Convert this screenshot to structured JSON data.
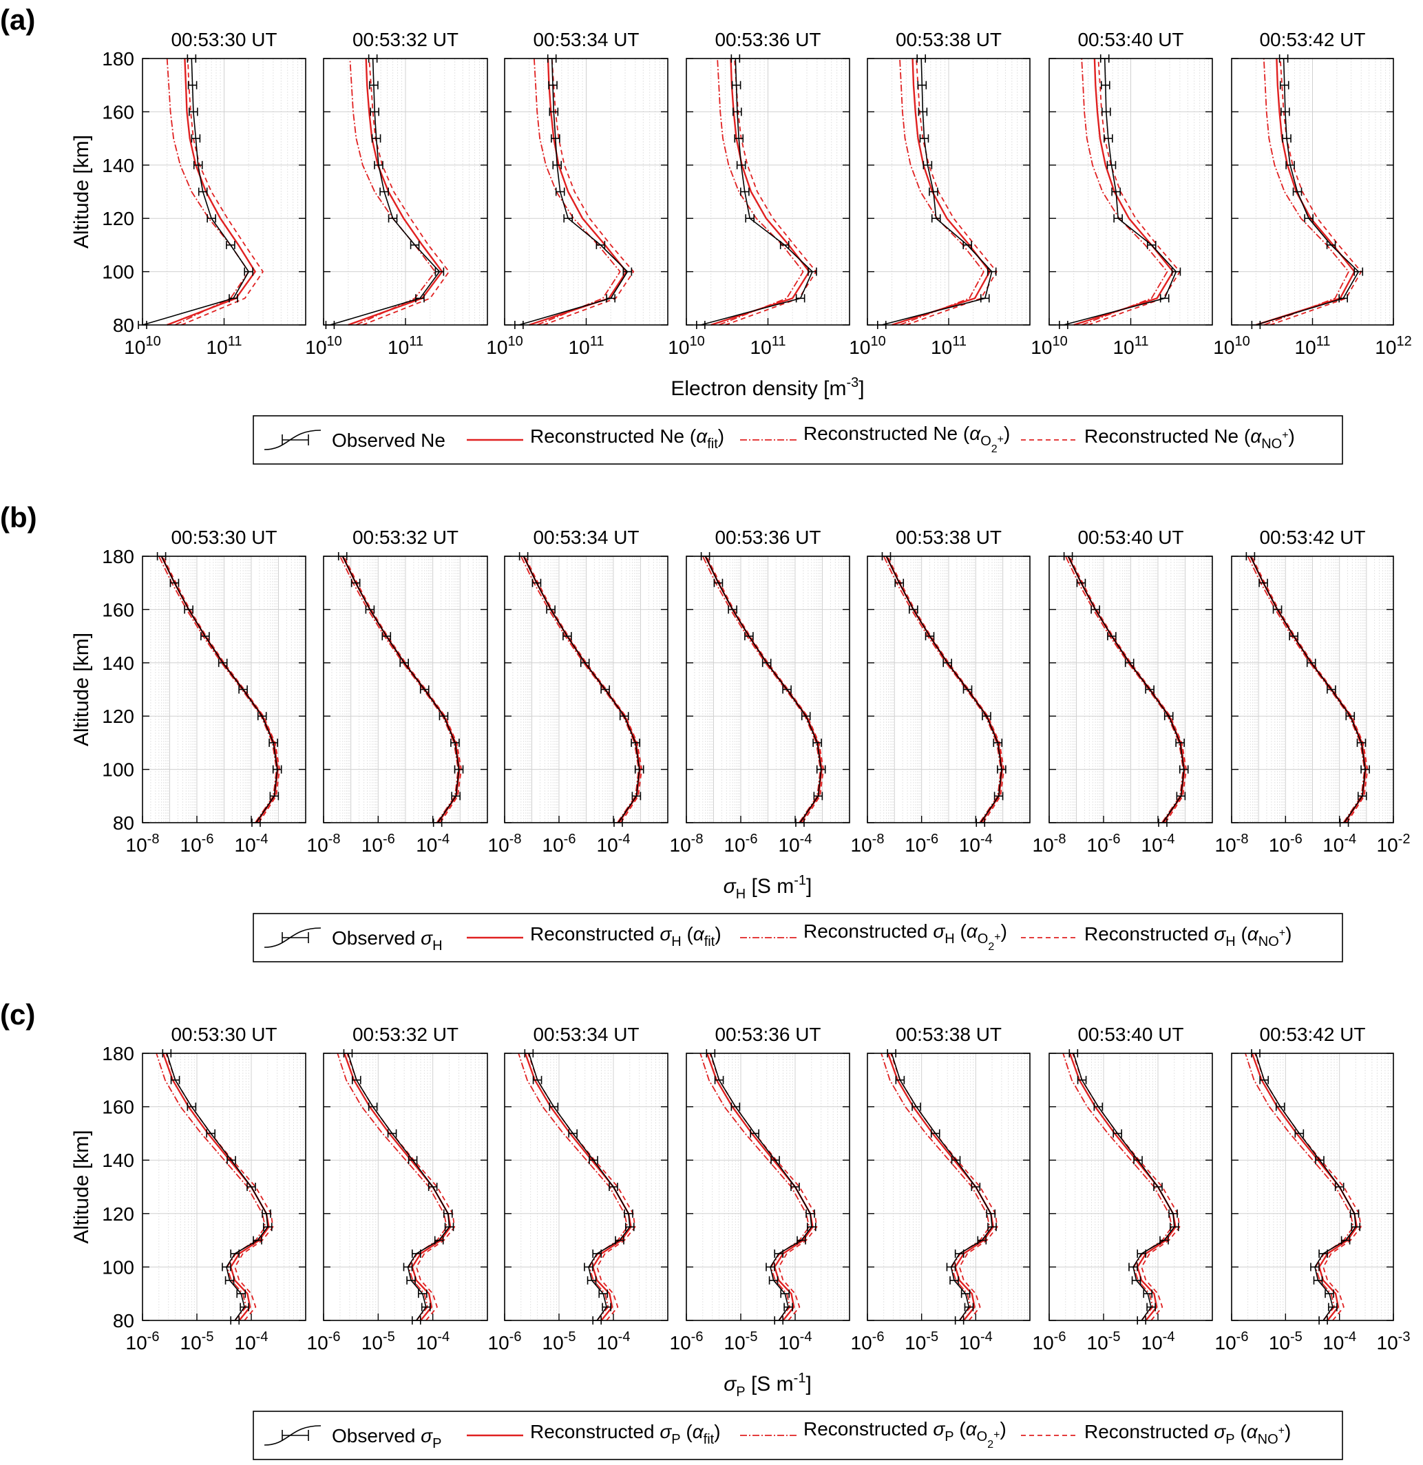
{
  "chart_data": [
    {
      "type": "line",
      "panel": "(a)",
      "title_times": [
        "00:53:30 UT",
        "00:53:32 UT",
        "00:53:34 UT",
        "00:53:36 UT",
        "00:53:38 UT",
        "00:53:40 UT",
        "00:53:42 UT"
      ],
      "ylabel": "Altitude [km]",
      "xlabel": "Electron density [m^-3]",
      "xlabel_main": "Electron density [m",
      "xlabel_exp": "-3",
      "xlabel_tail": "]",
      "xscale": "log",
      "xlim_exp": [
        10,
        12
      ],
      "ylim": [
        80,
        180
      ],
      "yticks": [
        80,
        100,
        120,
        140,
        160,
        180
      ],
      "tick_base": "10",
      "xtick_exps_inner": [
        "10",
        "11"
      ],
      "xtick_exps_last": [
        "10",
        "11",
        "12"
      ],
      "grid": true,
      "altitudes": [
        80,
        90,
        100,
        110,
        120,
        130,
        140,
        150,
        160,
        170,
        180
      ],
      "legend": {
        "observed": {
          "main": "Observed Ne",
          "sub": ""
        },
        "fit": {
          "main": "Reconstructed Ne (",
          "alpha": "α",
          "sub": "fit",
          "tail": ")"
        },
        "o2": {
          "main": "Reconstructed Ne (",
          "alpha": "α",
          "sub": "O",
          "subsub": "2",
          "sup": "+",
          "tail": ")"
        },
        "no": {
          "main": "Reconstructed Ne (",
          "alpha": "α",
          "sub": "NO",
          "sup": "+",
          "tail": ")"
        }
      },
      "series_per_subplot": [
        {
          "observed": [
            10000000000.0,
            130000000000.0,
            200000000000.0,
            120000000000.0,
            70000000000.0,
            55000000000.0,
            48000000000.0,
            45000000000.0,
            42000000000.0,
            41000000000.0,
            40000000000.0
          ],
          "fit": [
            20000000000.0,
            140000000000.0,
            240000000000.0,
            150000000000.0,
            90000000000.0,
            60000000000.0,
            45000000000.0,
            38000000000.0,
            35000000000.0,
            34000000000.0,
            33000000000.0
          ],
          "o2": [
            25000000000.0,
            120000000000.0,
            200000000000.0,
            120000000000.0,
            65000000000.0,
            40000000000.0,
            29000000000.0,
            24000000000.0,
            22000000000.0,
            21000000000.0,
            20000000000.0
          ],
          "no": [
            30000000000.0,
            180000000000.0,
            300000000000.0,
            180000000000.0,
            110000000000.0,
            70000000000.0,
            50000000000.0,
            42000000000.0,
            39000000000.0,
            37000000000.0,
            36000000000.0
          ]
        },
        {
          "observed": [
            12000000000.0,
            150000000000.0,
            260000000000.0,
            130000000000.0,
            70000000000.0,
            55000000000.0,
            47000000000.0,
            44000000000.0,
            42000000000.0,
            41000000000.0,
            40000000000.0
          ],
          "fit": [
            20000000000.0,
            160000000000.0,
            280000000000.0,
            160000000000.0,
            95000000000.0,
            62000000000.0,
            46000000000.0,
            39000000000.0,
            36000000000.0,
            34000000000.0,
            33000000000.0
          ],
          "o2": [
            25000000000.0,
            130000000000.0,
            230000000000.0,
            130000000000.0,
            70000000000.0,
            42000000000.0,
            30000000000.0,
            25000000000.0,
            23000000000.0,
            22000000000.0,
            21000000000.0
          ],
          "no": [
            30000000000.0,
            200000000000.0,
            340000000000.0,
            190000000000.0,
            115000000000.0,
            72000000000.0,
            52000000000.0,
            43000000000.0,
            40000000000.0,
            38000000000.0,
            36000000000.0
          ]
        },
        {
          "observed": [
            15000000000.0,
            200000000000.0,
            320000000000.0,
            150000000000.0,
            60000000000.0,
            48000000000.0,
            44000000000.0,
            42000000000.0,
            40000000000.0,
            39000000000.0,
            38000000000.0
          ],
          "fit": [
            20000000000.0,
            190000000000.0,
            310000000000.0,
            170000000000.0,
            90000000000.0,
            60000000000.0,
            46000000000.0,
            40000000000.0,
            37000000000.0,
            35000000000.0,
            34000000000.0
          ],
          "o2": [
            25000000000.0,
            160000000000.0,
            260000000000.0,
            140000000000.0,
            70000000000.0,
            43000000000.0,
            32000000000.0,
            27000000000.0,
            25000000000.0,
            24000000000.0,
            23000000000.0
          ],
          "no": [
            30000000000.0,
            230000000000.0,
            380000000000.0,
            200000000000.0,
            110000000000.0,
            72000000000.0,
            54000000000.0,
            46000000000.0,
            42000000000.0,
            40000000000.0,
            38000000000.0
          ]
        },
        {
          "observed": [
            15000000000.0,
            250000000000.0,
            350000000000.0,
            160000000000.0,
            60000000000.0,
            52000000000.0,
            47000000000.0,
            44000000000.0,
            42000000000.0,
            41000000000.0,
            40000000000.0
          ],
          "fit": [
            20000000000.0,
            200000000000.0,
            320000000000.0,
            180000000000.0,
            95000000000.0,
            62000000000.0,
            48000000000.0,
            41000000000.0,
            38000000000.0,
            36000000000.0,
            35000000000.0
          ],
          "o2": [
            25000000000.0,
            170000000000.0,
            270000000000.0,
            150000000000.0,
            72000000000.0,
            44000000000.0,
            33000000000.0,
            28000000000.0,
            26000000000.0,
            25000000000.0,
            24000000000.0
          ],
          "no": [
            30000000000.0,
            240000000000.0,
            390000000000.0,
            210000000000.0,
            115000000000.0,
            74000000000.0,
            56000000000.0,
            47000000000.0,
            43000000000.0,
            41000000000.0,
            39000000000.0
          ]
        },
        {
          "observed": [
            15000000000.0,
            280000000000.0,
            340000000000.0,
            170000000000.0,
            70000000000.0,
            65000000000.0,
            55000000000.0,
            50000000000.0,
            48000000000.0,
            47000000000.0,
            46000000000.0
          ],
          "fit": [
            20000000000.0,
            210000000000.0,
            320000000000.0,
            180000000000.0,
            95000000000.0,
            63000000000.0,
            49000000000.0,
            42000000000.0,
            39000000000.0,
            37000000000.0,
            36000000000.0
          ],
          "o2": [
            25000000000.0,
            180000000000.0,
            270000000000.0,
            150000000000.0,
            72000000000.0,
            45000000000.0,
            34000000000.0,
            29000000000.0,
            27000000000.0,
            26000000000.0,
            25000000000.0
          ],
          "no": [
            30000000000.0,
            250000000000.0,
            390000000000.0,
            210000000000.0,
            115000000000.0,
            75000000000.0,
            57000000000.0,
            48000000000.0,
            44000000000.0,
            42000000000.0,
            40000000000.0
          ]
        },
        {
          "observed": [
            15000000000.0,
            260000000000.0,
            360000000000.0,
            180000000000.0,
            70000000000.0,
            66000000000.0,
            58000000000.0,
            53000000000.0,
            50000000000.0,
            49000000000.0,
            48000000000.0
          ],
          "fit": [
            20000000000.0,
            210000000000.0,
            330000000000.0,
            180000000000.0,
            95000000000.0,
            63000000000.0,
            49000000000.0,
            42000000000.0,
            39000000000.0,
            37000000000.0,
            36000000000.0
          ],
          "o2": [
            25000000000.0,
            180000000000.0,
            280000000000.0,
            150000000000.0,
            72000000000.0,
            45000000000.0,
            34000000000.0,
            29000000000.0,
            27000000000.0,
            26000000000.0,
            25000000000.0
          ],
          "no": [
            30000000000.0,
            250000000000.0,
            400000000000.0,
            210000000000.0,
            115000000000.0,
            75000000000.0,
            57000000000.0,
            48000000000.0,
            44000000000.0,
            42000000000.0,
            40000000000.0
          ]
        },
        {
          "observed": [
            20000000000.0,
            240000000000.0,
            370000000000.0,
            170000000000.0,
            90000000000.0,
            65000000000.0,
            53000000000.0,
            48000000000.0,
            46000000000.0,
            45000000000.0,
            44000000000.0
          ],
          "fit": [
            20000000000.0,
            220000000000.0,
            330000000000.0,
            180000000000.0,
            95000000000.0,
            63000000000.0,
            49000000000.0,
            42000000000.0,
            39000000000.0,
            37000000000.0,
            36000000000.0
          ],
          "o2": [
            25000000000.0,
            190000000000.0,
            280000000000.0,
            150000000000.0,
            72000000000.0,
            45000000000.0,
            34000000000.0,
            29000000000.0,
            27000000000.0,
            26000000000.0,
            25000000000.0
          ],
          "no": [
            30000000000.0,
            260000000000.0,
            400000000000.0,
            210000000000.0,
            115000000000.0,
            75000000000.0,
            57000000000.0,
            48000000000.0,
            44000000000.0,
            42000000000.0,
            40000000000.0
          ]
        }
      ]
    },
    {
      "type": "line",
      "panel": "(b)",
      "title_times": [
        "00:53:30 UT",
        "00:53:32 UT",
        "00:53:34 UT",
        "00:53:36 UT",
        "00:53:38 UT",
        "00:53:40 UT",
        "00:53:42 UT"
      ],
      "ylabel": "Altitude [km]",
      "xlabel": "σH [S m^-1]",
      "xlabel_sym": "σ",
      "xlabel_sub": "H",
      "xlabel_unit": " [S m",
      "xlabel_exp": "-1",
      "xlabel_tail": "]",
      "xscale": "log",
      "xlim_exp": [
        -8,
        -2
      ],
      "ylim": [
        80,
        180
      ],
      "yticks": [
        80,
        100,
        120,
        140,
        160,
        180
      ],
      "tick_base": "10",
      "xtick_exps_inner": [
        "-8",
        "-6",
        "-4"
      ],
      "xtick_exps_last": [
        "-8",
        "-6",
        "-4",
        "-2"
      ],
      "grid": true,
      "altitudes": [
        80,
        90,
        100,
        110,
        120,
        130,
        140,
        150,
        160,
        170,
        180
      ],
      "legend": {
        "observed": {
          "main": "Observed ",
          "alpha": "σ",
          "sub": "H"
        },
        "fit": {
          "main": "Reconstructed ",
          "sym": "σ",
          "symsub": "H",
          "open": " (",
          "alpha": "α",
          "sub": "fit",
          "tail": ")"
        },
        "o2": {
          "main": "Reconstructed ",
          "sym": "σ",
          "symsub": "H",
          "open": " (",
          "alpha": "α",
          "sub": "O",
          "subsub": "2",
          "sup": "+",
          "tail": ")"
        },
        "no": {
          "main": "Reconstructed ",
          "sym": "σ",
          "symsub": "H",
          "open": " (",
          "alpha": "α",
          "sub": "NO",
          "sup": "+",
          "tail": ")"
        }
      },
      "series_per_subplot": [
        {
          "observed": [
            0.00015,
            0.0007,
            0.0009,
            0.00065,
            0.00025,
            5e-05,
            9e-06,
            2e-06,
            5e-07,
            1.5e-07,
            5e-08
          ],
          "fit": [
            0.00016,
            0.00072,
            0.00095,
            0.00068,
            0.00026,
            5e-05,
            9e-06,
            2e-06,
            5e-07,
            1.5e-07,
            5e-08
          ],
          "o2": [
            0.00014,
            0.00065,
            0.00085,
            0.0006,
            0.00023,
            4.5e-05,
            8e-06,
            1.7e-06,
            4.2e-07,
            1.2e-07,
            4e-08
          ],
          "no": [
            0.00019,
            0.00082,
            0.0011,
            0.00075,
            0.00028,
            5.5e-05,
            1e-05,
            2.2e-06,
            5.5e-07,
            1.7e-07,
            5.5e-08
          ]
        }
      ]
    },
    {
      "type": "line",
      "panel": "(c)",
      "title_times": [
        "00:53:30 UT",
        "00:53:32 UT",
        "00:53:34 UT",
        "00:53:36 UT",
        "00:53:38 UT",
        "00:53:40 UT",
        "00:53:42 UT"
      ],
      "ylabel": "Altitude [km]",
      "xlabel": "σP [S m^-1]",
      "xlabel_sym": "σ",
      "xlabel_sub": "P",
      "xlabel_unit": " [S m",
      "xlabel_exp": "-1",
      "xlabel_tail": "]",
      "xscale": "log",
      "xlim_exp": [
        -6,
        -3
      ],
      "ylim": [
        80,
        180
      ],
      "yticks": [
        80,
        100,
        120,
        140,
        160,
        180
      ],
      "tick_base": "10",
      "xtick_exps_inner": [
        "-6",
        "-5",
        "-4"
      ],
      "xtick_exps_last": [
        "-6",
        "-5",
        "-4",
        "-3"
      ],
      "grid": true,
      "altitudes": [
        80,
        85,
        90,
        95,
        100,
        105,
        110,
        115,
        120,
        130,
        140,
        150,
        160,
        170,
        180
      ],
      "legend": {
        "observed": {
          "main": "Observed ",
          "alpha": "σ",
          "sub": "P"
        },
        "fit": {
          "main": "Reconstructed ",
          "sym": "σ",
          "symsub": "P",
          "open": " (",
          "alpha": "α",
          "sub": "fit",
          "tail": ")"
        },
        "o2": {
          "main": "Reconstructed ",
          "sym": "σ",
          "symsub": "P",
          "open": " (",
          "alpha": "α",
          "sub": "O",
          "subsub": "2",
          "sup": "+",
          "tail": ")"
        },
        "no": {
          "main": "Reconstructed ",
          "sym": "σ",
          "symsub": "P",
          "open": " (",
          "alpha": "α",
          "sub": "NO",
          "sup": "+",
          "tail": ")"
        }
      },
      "series_per_subplot": [
        {
          "observed": [
            5e-05,
            7.5e-05,
            6.5e-05,
            4e-05,
            3.5e-05,
            5e-05,
            0.00013,
            0.0002,
            0.00019,
            0.0001,
            4.3e-05,
            1.8e-05,
            8e-06,
            4e-06,
            2.8e-06
          ],
          "fit": [
            6e-05,
            9.5e-05,
            8.5e-05,
            5e-05,
            4.2e-05,
            6e-05,
            0.00014,
            0.00021,
            0.00019,
            0.0001,
            4e-05,
            1.6e-05,
            7e-06,
            3.6e-06,
            2.4e-06
          ],
          "o2": [
            5e-05,
            8e-05,
            7e-05,
            4.3e-05,
            3.6e-05,
            5.2e-05,
            0.00012,
            0.00018,
            0.00016,
            8.5e-05,
            3.2e-05,
            1.2e-05,
            5e-06,
            2.6e-06,
            1.8e-06
          ],
          "no": [
            7.5e-05,
            0.00012,
            0.0001,
            6e-05,
            5e-05,
            7e-05,
            0.00016,
            0.00025,
            0.00023,
            0.00012,
            4.5e-05,
            1.8e-05,
            8e-06,
            4e-06,
            2.7e-06
          ]
        }
      ]
    }
  ]
}
